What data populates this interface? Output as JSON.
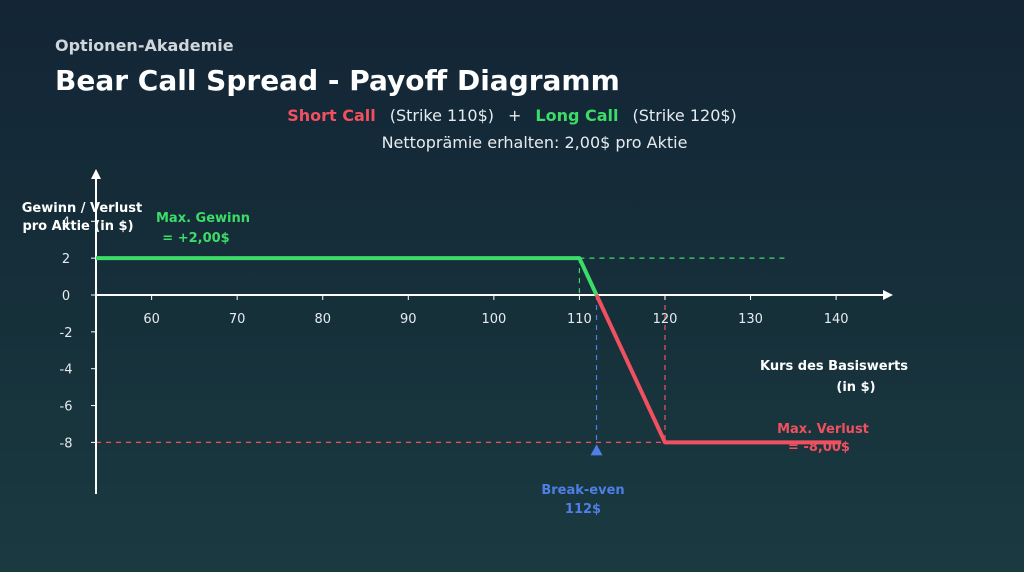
{
  "header": {
    "brand": "Optionen-Akademie",
    "title": "Bear Call Spread - Payoff Diagramm",
    "short_call_label": "Short Call",
    "short_call_strike": "(Strike 110$)",
    "plus": "+",
    "long_call_label": "Long Call",
    "long_call_strike": "(Strike 120$)",
    "premium_text": "Nettoprämie erhalten: 2,00$ pro Aktie"
  },
  "colors": {
    "profit": "#3ddc68",
    "loss": "#f0505f",
    "breakeven": "#4f7fe6",
    "axis": "#ffffff"
  },
  "chart_data": {
    "type": "line",
    "title": "Bear Call Spread - Payoff Diagramm",
    "xlabel_line1": "Kurs des Basiswerts",
    "xlabel_line2": "(in $)",
    "ylabel_line1": "Gewinn / Verlust",
    "ylabel_line2": "pro Aktie (in $)",
    "x_ticks": [
      60,
      70,
      80,
      90,
      100,
      110,
      120,
      130,
      140
    ],
    "y_ticks": [
      4,
      2,
      0,
      -2,
      -4,
      -6,
      -8
    ],
    "xlim": [
      53.5,
      147
    ],
    "ylim": [
      -10.8,
      7
    ],
    "series": [
      {
        "segment": "profit",
        "x": [
          53.5,
          110,
          112
        ],
        "y": [
          2,
          2,
          0
        ]
      },
      {
        "segment": "loss",
        "x": [
          112,
          120,
          140.6
        ],
        "y": [
          0,
          -8,
          -8
        ]
      }
    ],
    "annotations": {
      "max_gain_line1": "Max. Gewinn",
      "max_gain_line2": "= +2,00$",
      "max_loss_line1": "Max. Verlust",
      "max_loss_line2": "= -8,00$",
      "breakeven_line1": "Break-even",
      "breakeven_line2": "112$"
    },
    "reference_lines": {
      "max_gain_level": 2,
      "max_loss_level": -8,
      "strike_short": 110,
      "strike_long": 120,
      "breakeven": 112
    },
    "grid": false
  }
}
